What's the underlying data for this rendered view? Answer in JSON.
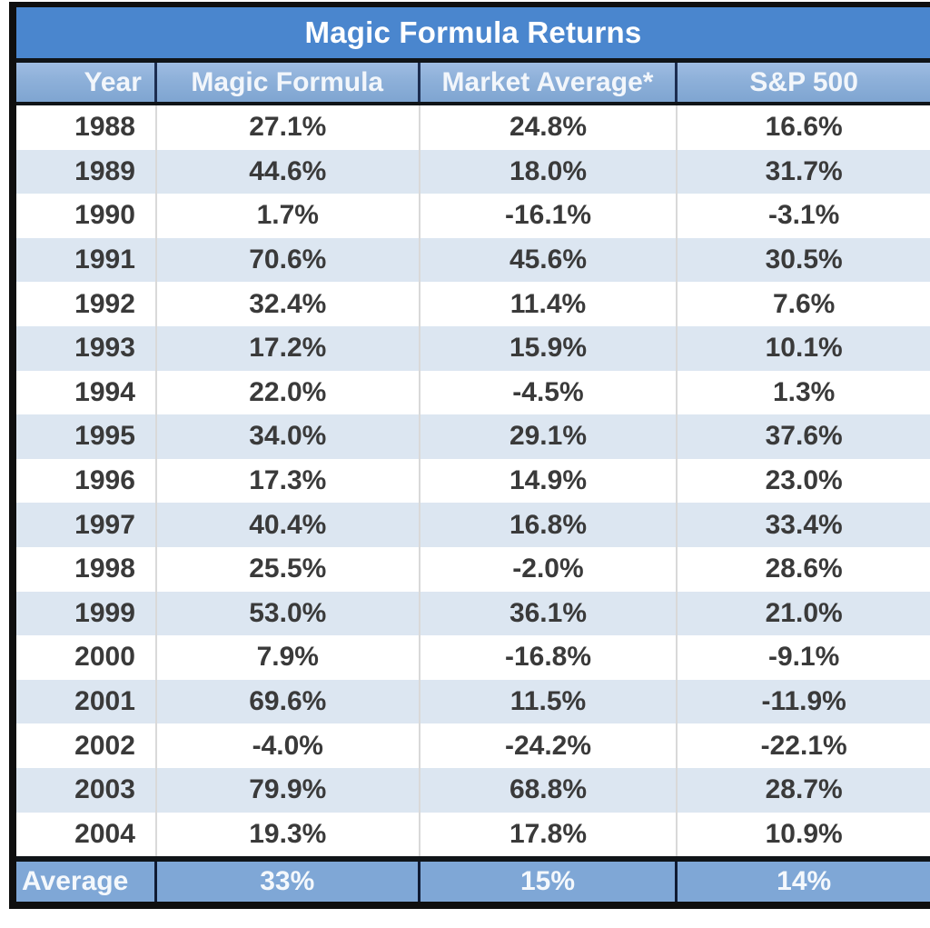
{
  "title": "Magic Formula Returns",
  "columns": [
    "Year",
    "Magic Formula",
    "Market Average*",
    "S&P 500"
  ],
  "rows": [
    {
      "year": "1988",
      "magic_formula": "27.1%",
      "market_average": "24.8%",
      "sp500": "16.6%"
    },
    {
      "year": "1989",
      "magic_formula": "44.6%",
      "market_average": "18.0%",
      "sp500": "31.7%"
    },
    {
      "year": "1990",
      "magic_formula": "1.7%",
      "market_average": "-16.1%",
      "sp500": "-3.1%"
    },
    {
      "year": "1991",
      "magic_formula": "70.6%",
      "market_average": "45.6%",
      "sp500": "30.5%"
    },
    {
      "year": "1992",
      "magic_formula": "32.4%",
      "market_average": "11.4%",
      "sp500": "7.6%"
    },
    {
      "year": "1993",
      "magic_formula": "17.2%",
      "market_average": "15.9%",
      "sp500": "10.1%"
    },
    {
      "year": "1994",
      "magic_formula": "22.0%",
      "market_average": "-4.5%",
      "sp500": "1.3%"
    },
    {
      "year": "1995",
      "magic_formula": "34.0%",
      "market_average": "29.1%",
      "sp500": "37.6%"
    },
    {
      "year": "1996",
      "magic_formula": "17.3%",
      "market_average": "14.9%",
      "sp500": "23.0%"
    },
    {
      "year": "1997",
      "magic_formula": "40.4%",
      "market_average": "16.8%",
      "sp500": "33.4%"
    },
    {
      "year": "1998",
      "magic_formula": "25.5%",
      "market_average": "-2.0%",
      "sp500": "28.6%"
    },
    {
      "year": "1999",
      "magic_formula": "53.0%",
      "market_average": "36.1%",
      "sp500": "21.0%"
    },
    {
      "year": "2000",
      "magic_formula": "7.9%",
      "market_average": "-16.8%",
      "sp500": "-9.1%"
    },
    {
      "year": "2001",
      "magic_formula": "69.6%",
      "market_average": "11.5%",
      "sp500": "-11.9%"
    },
    {
      "year": "2002",
      "magic_formula": "-4.0%",
      "market_average": "-24.2%",
      "sp500": "-22.1%"
    },
    {
      "year": "2003",
      "magic_formula": "79.9%",
      "market_average": "68.8%",
      "sp500": "28.7%"
    },
    {
      "year": "2004",
      "magic_formula": "19.3%",
      "market_average": "17.8%",
      "sp500": "10.9%"
    }
  ],
  "average": {
    "label": "Average",
    "magic_formula": "33%",
    "market_average": "15%",
    "sp500": "14%"
  },
  "colors": {
    "title_bg": "#4a86ce",
    "header_bg_top": "#9fbce2",
    "header_bg_bottom": "#7fa5d1",
    "average_bg": "#7fa7d6",
    "alt_row_bg": "#dce6f1",
    "row_bg": "#ffffff",
    "border_black": "#0f0f0f",
    "header_divider": "#1c2d50",
    "data_divider": "#d9d9d9",
    "data_text": "#3a3a3a",
    "light_text": "#ffffff"
  },
  "chart_data": {
    "type": "table",
    "title": "Magic Formula Returns",
    "columns": [
      "Year",
      "Magic Formula",
      "Market Average*",
      "S&P 500"
    ],
    "categories": [
      1988,
      1989,
      1990,
      1991,
      1992,
      1993,
      1994,
      1995,
      1996,
      1997,
      1998,
      1999,
      2000,
      2001,
      2002,
      2003,
      2004
    ],
    "series": [
      {
        "name": "Magic Formula",
        "values": [
          27.1,
          44.6,
          1.7,
          70.6,
          32.4,
          17.2,
          22.0,
          34.0,
          17.3,
          40.4,
          25.5,
          53.0,
          7.9,
          69.6,
          -4.0,
          79.9,
          19.3
        ],
        "unit": "%"
      },
      {
        "name": "Market Average*",
        "values": [
          24.8,
          18.0,
          -16.1,
          45.6,
          11.4,
          15.9,
          -4.5,
          29.1,
          14.9,
          16.8,
          -2.0,
          36.1,
          -16.8,
          11.5,
          -24.2,
          68.8,
          17.8
        ],
        "unit": "%"
      },
      {
        "name": "S&P 500",
        "values": [
          16.6,
          31.7,
          -3.1,
          30.5,
          7.6,
          10.1,
          1.3,
          37.6,
          23.0,
          33.4,
          28.6,
          21.0,
          -9.1,
          -11.9,
          -22.1,
          28.7,
          10.9
        ],
        "unit": "%"
      }
    ],
    "summary_row": {
      "label": "Average",
      "values": [
        33,
        15,
        14
      ],
      "unit": "%"
    }
  }
}
